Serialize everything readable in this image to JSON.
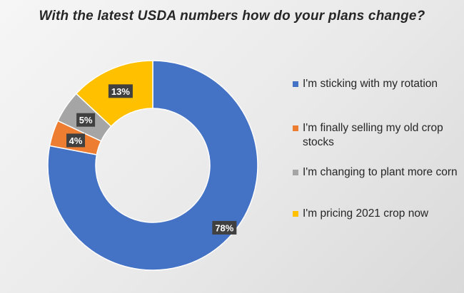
{
  "chart_data": {
    "type": "pie",
    "style": "donut",
    "title": "With the latest USDA numbers how do your plans change?",
    "categories": [
      "I'm sticking with my rotation",
      "I'm finally selling my old crop stocks",
      "I'm changing to plant more corn",
      "I'm pricing 2021 crop now"
    ],
    "values": [
      78,
      4,
      5,
      13
    ],
    "labels": [
      "78%",
      "4%",
      "5%",
      "13%"
    ],
    "colors": [
      "#4472C4",
      "#ED7D31",
      "#A5A5A5",
      "#FFC000"
    ],
    "legend_position": "right"
  }
}
